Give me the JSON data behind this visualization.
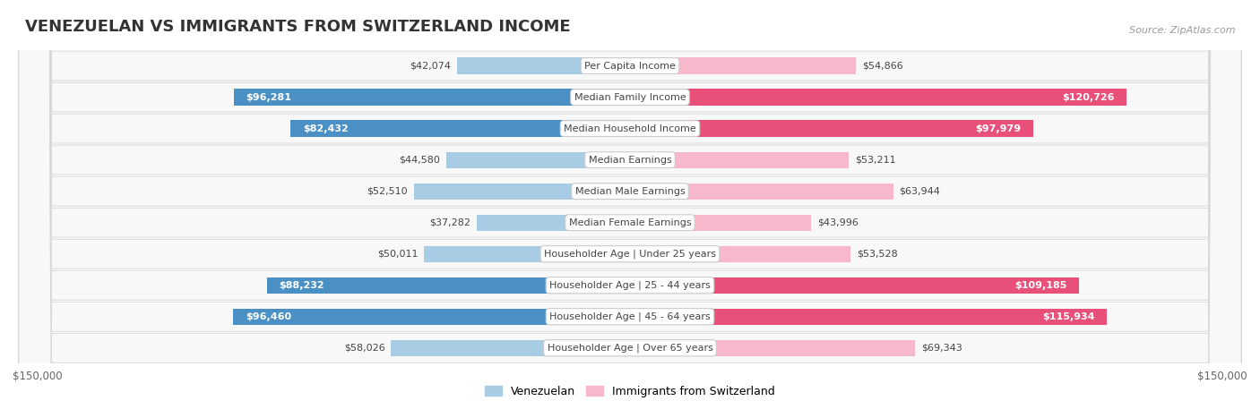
{
  "title": "VENEZUELAN VS IMMIGRANTS FROM SWITZERLAND INCOME",
  "source": "Source: ZipAtlas.com",
  "categories": [
    "Per Capita Income",
    "Median Family Income",
    "Median Household Income",
    "Median Earnings",
    "Median Male Earnings",
    "Median Female Earnings",
    "Householder Age | Under 25 years",
    "Householder Age | 25 - 44 years",
    "Householder Age | 45 - 64 years",
    "Householder Age | Over 65 years"
  ],
  "venezuelan_values": [
    42074,
    96281,
    82432,
    44580,
    52510,
    37282,
    50011,
    88232,
    96460,
    58026
  ],
  "swiss_values": [
    54866,
    120726,
    97979,
    53211,
    63944,
    43996,
    53528,
    109185,
    115934,
    69343
  ],
  "venezuelan_labels": [
    "$42,074",
    "$96,281",
    "$82,432",
    "$44,580",
    "$52,510",
    "$37,282",
    "$50,011",
    "$88,232",
    "$96,460",
    "$58,026"
  ],
  "swiss_labels": [
    "$54,866",
    "$120,726",
    "$97,979",
    "$53,211",
    "$63,944",
    "$43,996",
    "$53,528",
    "$109,185",
    "$115,934",
    "$69,343"
  ],
  "venezuelan_color_light": "#a8cce4",
  "venezuelan_color_dark": "#4a90c4",
  "swiss_color_light": "#f7b8cc",
  "swiss_color_dark": "#e8507a",
  "ven_dark_threshold": 75000,
  "swi_dark_threshold": 75000,
  "max_value": 150000,
  "bar_height": 0.52,
  "title_fontsize": 13,
  "source_fontsize": 8,
  "label_fontsize": 8,
  "cat_fontsize": 8,
  "legend_fontsize": 9
}
